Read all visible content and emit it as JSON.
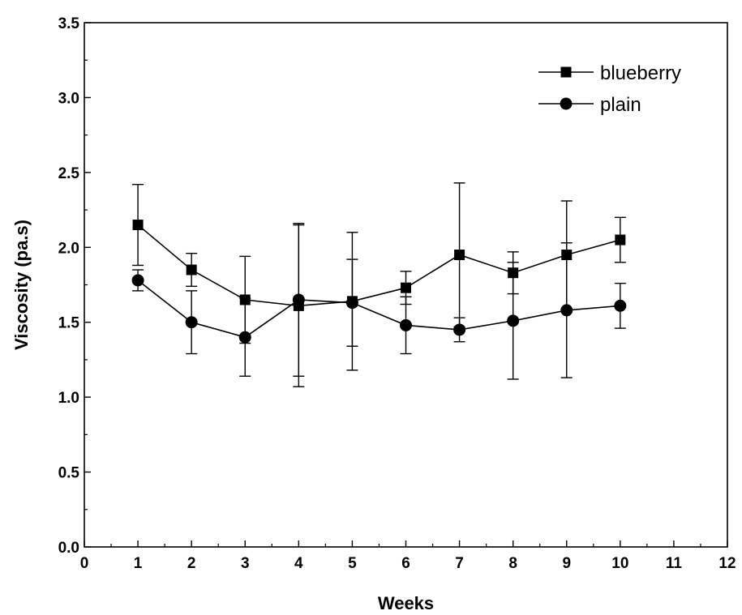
{
  "chart_data": {
    "type": "line",
    "xlabel": "Weeks",
    "ylabel": "Viscosity (pa.s)",
    "xlim": [
      0,
      12
    ],
    "ylim": [
      0.0,
      3.5
    ],
    "x_ticks": [
      "0",
      "1",
      "2",
      "3",
      "4",
      "5",
      "6",
      "7",
      "8",
      "9",
      "10",
      "11",
      "12"
    ],
    "y_ticks": [
      "0.0",
      "0.5",
      "1.0",
      "1.5",
      "2.0",
      "2.5",
      "3.0",
      "3.5"
    ],
    "grid": false,
    "legend_position": "top-right",
    "series": [
      {
        "name": "blueberry",
        "marker": "square",
        "x": [
          1,
          2,
          3,
          4,
          5,
          6,
          7,
          8,
          9,
          10
        ],
        "y": [
          2.15,
          1.85,
          1.65,
          1.61,
          1.64,
          1.73,
          1.95,
          1.83,
          1.95,
          2.05
        ],
        "error": [
          0.27,
          0.11,
          0.29,
          0.54,
          0.46,
          0.11,
          0.48,
          0.14,
          0.36,
          0.15
        ]
      },
      {
        "name": "plain",
        "marker": "circle",
        "x": [
          1,
          2,
          3,
          4,
          5,
          6,
          7,
          8,
          9,
          10
        ],
        "y": [
          1.78,
          1.5,
          1.4,
          1.65,
          1.63,
          1.48,
          1.45,
          1.51,
          1.58,
          1.61
        ],
        "error": [
          0.07,
          0.21,
          0.26,
          0.51,
          0.29,
          0.19,
          0.08,
          0.39,
          0.45,
          0.15
        ]
      }
    ]
  }
}
